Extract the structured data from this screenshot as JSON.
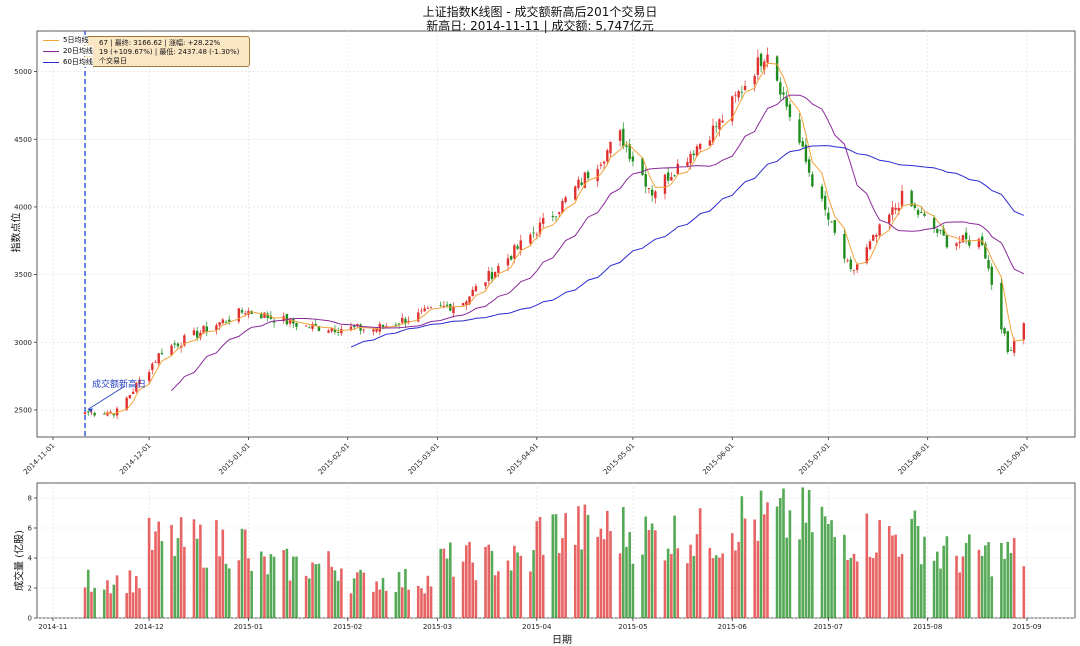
{
  "chart_data": [
    {
      "type": "candlestick",
      "title": "上证指数K线图 - 成交额新高后201个交易日",
      "subtitle": "新高日: 2014-11-11 | 成交额: 5,747亿元",
      "ylabel": "指数点位",
      "ylim": [
        2300,
        5300
      ],
      "yticks": [
        2500,
        3000,
        3500,
        4000,
        4500,
        5000
      ],
      "x_tick_labels": [
        "2014-11-01",
        "2014-12-01",
        "2015-01-01",
        "2015-02-01",
        "2015-03-01",
        "2015-04-01",
        "2015-05-01",
        "2015-06-01",
        "2015-07-01",
        "2015-08-01",
        "2015-09-01"
      ],
      "grid": true,
      "legend_position": "top-left",
      "legend": [
        {
          "name": "5日均线",
          "color": "#f2a33a"
        },
        {
          "name": "20日均线",
          "color": "#8a2a9a"
        },
        {
          "name": "60日均线",
          "color": "#2a2acf"
        }
      ],
      "info_box": {
        "line1": "67 | 最终: 3166.62 | 涨幅: +28.22%",
        "line2": "19 (+109.67%) | 最低: 2437.48 (-1.30%)",
        "line3": "个交易日"
      },
      "annotation": {
        "text": "成交额新高日",
        "date": "2014-11-11",
        "color": "#1f3fbf"
      },
      "colors": {
        "up": "#e03030",
        "down": "#1e8c1e"
      },
      "key_points": [
        {
          "date": "2014-11-11",
          "close": 2482
        },
        {
          "date": "2014-11-21",
          "close": 2487
        },
        {
          "date": "2014-12-05",
          "close": 2938
        },
        {
          "date": "2014-12-31",
          "close": 3235
        },
        {
          "date": "2015-01-19",
          "close": 3116
        },
        {
          "date": "2015-02-09",
          "close": 3095
        },
        {
          "date": "2015-03-09",
          "close": 3302
        },
        {
          "date": "2015-04-08",
          "close": 3995
        },
        {
          "date": "2015-04-27",
          "close": 4527
        },
        {
          "date": "2015-05-07",
          "close": 4112
        },
        {
          "date": "2015-05-28",
          "close": 4620
        },
        {
          "date": "2015-06-12",
          "close": 5166
        },
        {
          "date": "2015-06-26",
          "close": 4192
        },
        {
          "date": "2015-07-08",
          "close": 3507
        },
        {
          "date": "2015-07-24",
          "close": 4070
        },
        {
          "date": "2015-08-07",
          "close": 3744
        },
        {
          "date": "2015-08-18",
          "close": 3748
        },
        {
          "date": "2015-08-26",
          "close": 2927
        },
        {
          "date": "2015-08-31",
          "close": 3166
        }
      ]
    },
    {
      "type": "bar",
      "ylabel": "成交量 (亿股)",
      "xlabel": "日期",
      "ylim": [
        0,
        9
      ],
      "yticks": [
        0,
        2,
        4,
        6,
        8
      ],
      "x_tick_labels": [
        "2014-11",
        "2014-12",
        "2015-01",
        "2015-02",
        "2015-03",
        "2015-04",
        "2015-05",
        "2015-06",
        "2015-07",
        "2015-08",
        "2015-09"
      ],
      "grid": true,
      "volume_levels": [
        {
          "period": "2014-11",
          "approx": 2.5
        },
        {
          "period": "2014-12",
          "approx": 5.0
        },
        {
          "period": "2015-01",
          "approx": 3.5
        },
        {
          "period": "2015-02",
          "approx": 2.5
        },
        {
          "period": "2015-03",
          "approx": 3.8
        },
        {
          "period": "2015-04",
          "approx": 5.8
        },
        {
          "period": "2015-05",
          "approx": 5.5
        },
        {
          "period": "2015-06",
          "approx": 6.5
        },
        {
          "period": "2015-07",
          "approx": 5.5
        },
        {
          "period": "2015-08",
          "approx": 4.2
        }
      ]
    }
  ]
}
